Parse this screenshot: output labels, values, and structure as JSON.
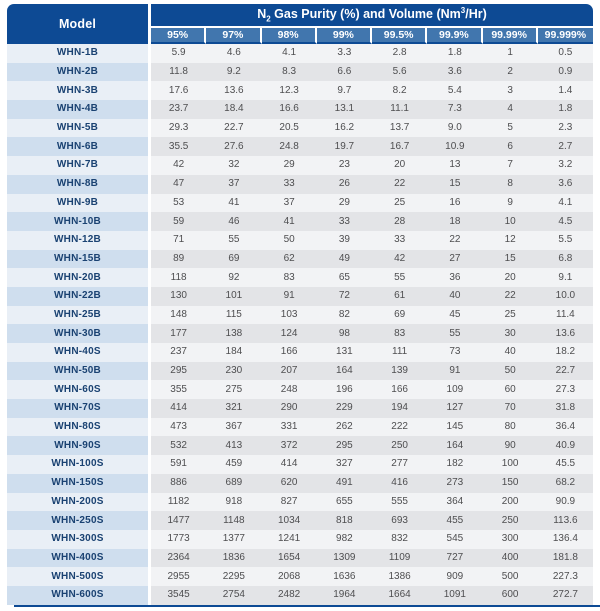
{
  "colors": {
    "header_dark_blue": "#0d4a94",
    "header_medium_blue": "#4176ae",
    "model_row_odd": "#e9eff6",
    "model_row_even": "#cfdeee",
    "data_row_odd": "#f2f3f5",
    "data_row_even": "#e3e4e7",
    "model_text": "#1a4272",
    "data_text": "#4e4e50"
  },
  "table": {
    "model_header": "Model",
    "purity_header_parts": {
      "base1": "N",
      "sub": "2",
      "base2": " Gas Purity (%) and Volume (Nm",
      "sup": "3",
      "base3": "/Hr)"
    },
    "purity_columns": [
      "95%",
      "97%",
      "98%",
      "99%",
      "99.5%",
      "99.9%",
      "99.99%",
      "99.999%"
    ],
    "rows": [
      {
        "model": "WHN-1B",
        "values": [
          "5.9",
          "4.6",
          "4.1",
          "3.3",
          "2.8",
          "1.8",
          "1",
          "0.5"
        ]
      },
      {
        "model": "WHN-2B",
        "values": [
          "11.8",
          "9.2",
          "8.3",
          "6.6",
          "5.6",
          "3.6",
          "2",
          "0.9"
        ]
      },
      {
        "model": "WHN-3B",
        "values": [
          "17.6",
          "13.6",
          "12.3",
          "9.7",
          "8.2",
          "5.4",
          "3",
          "1.4"
        ]
      },
      {
        "model": "WHN-4B",
        "values": [
          "23.7",
          "18.4",
          "16.6",
          "13.1",
          "11.1",
          "7.3",
          "4",
          "1.8"
        ]
      },
      {
        "model": "WHN-5B",
        "values": [
          "29.3",
          "22.7",
          "20.5",
          "16.2",
          "13.7",
          "9.0",
          "5",
          "2.3"
        ]
      },
      {
        "model": "WHN-6B",
        "values": [
          "35.5",
          "27.6",
          "24.8",
          "19.7",
          "16.7",
          "10.9",
          "6",
          "2.7"
        ]
      },
      {
        "model": "WHN-7B",
        "values": [
          "42",
          "32",
          "29",
          "23",
          "20",
          "13",
          "7",
          "3.2"
        ]
      },
      {
        "model": "WHN-8B",
        "values": [
          "47",
          "37",
          "33",
          "26",
          "22",
          "15",
          "8",
          "3.6"
        ]
      },
      {
        "model": "WHN-9B",
        "values": [
          "53",
          "41",
          "37",
          "29",
          "25",
          "16",
          "9",
          "4.1"
        ]
      },
      {
        "model": "WHN-10B",
        "values": [
          "59",
          "46",
          "41",
          "33",
          "28",
          "18",
          "10",
          "4.5"
        ]
      },
      {
        "model": "WHN-12B",
        "values": [
          "71",
          "55",
          "50",
          "39",
          "33",
          "22",
          "12",
          "5.5"
        ]
      },
      {
        "model": "WHN-15B",
        "values": [
          "89",
          "69",
          "62",
          "49",
          "42",
          "27",
          "15",
          "6.8"
        ]
      },
      {
        "model": "WHN-20B",
        "values": [
          "118",
          "92",
          "83",
          "65",
          "55",
          "36",
          "20",
          "9.1"
        ]
      },
      {
        "model": "WHN-22B",
        "values": [
          "130",
          "101",
          "91",
          "72",
          "61",
          "40",
          "22",
          "10.0"
        ]
      },
      {
        "model": "WHN-25B",
        "values": [
          "148",
          "115",
          "103",
          "82",
          "69",
          "45",
          "25",
          "11.4"
        ]
      },
      {
        "model": "WHN-30B",
        "values": [
          "177",
          "138",
          "124",
          "98",
          "83",
          "55",
          "30",
          "13.6"
        ]
      },
      {
        "model": "WHN-40S",
        "values": [
          "237",
          "184",
          "166",
          "131",
          "111",
          "73",
          "40",
          "18.2"
        ]
      },
      {
        "model": "WHN-50B",
        "values": [
          "295",
          "230",
          "207",
          "164",
          "139",
          "91",
          "50",
          "22.7"
        ]
      },
      {
        "model": "WHN-60S",
        "values": [
          "355",
          "275",
          "248",
          "196",
          "166",
          "109",
          "60",
          "27.3"
        ]
      },
      {
        "model": "WHN-70S",
        "values": [
          "414",
          "321",
          "290",
          "229",
          "194",
          "127",
          "70",
          "31.8"
        ]
      },
      {
        "model": "WHN-80S",
        "values": [
          "473",
          "367",
          "331",
          "262",
          "222",
          "145",
          "80",
          "36.4"
        ]
      },
      {
        "model": "WHN-90S",
        "values": [
          "532",
          "413",
          "372",
          "295",
          "250",
          "164",
          "90",
          "40.9"
        ]
      },
      {
        "model": "WHN-100S",
        "values": [
          "591",
          "459",
          "414",
          "327",
          "277",
          "182",
          "100",
          "45.5"
        ]
      },
      {
        "model": "WHN-150S",
        "values": [
          "886",
          "689",
          "620",
          "491",
          "416",
          "273",
          "150",
          "68.2"
        ]
      },
      {
        "model": "WHN-200S",
        "values": [
          "1182",
          "918",
          "827",
          "655",
          "555",
          "364",
          "200",
          "90.9"
        ]
      },
      {
        "model": "WHN-250S",
        "values": [
          "1477",
          "1148",
          "1034",
          "818",
          "693",
          "455",
          "250",
          "113.6"
        ]
      },
      {
        "model": "WHN-300S",
        "values": [
          "1773",
          "1377",
          "1241",
          "982",
          "832",
          "545",
          "300",
          "136.4"
        ]
      },
      {
        "model": "WHN-400S",
        "values": [
          "2364",
          "1836",
          "1654",
          "1309",
          "1109",
          "727",
          "400",
          "181.8"
        ]
      },
      {
        "model": "WHN-500S",
        "values": [
          "2955",
          "2295",
          "2068",
          "1636",
          "1386",
          "909",
          "500",
          "227.3"
        ]
      },
      {
        "model": "WHN-600S",
        "values": [
          "3545",
          "2754",
          "2482",
          "1964",
          "1664",
          "1091",
          "600",
          "272.7"
        ]
      }
    ]
  }
}
